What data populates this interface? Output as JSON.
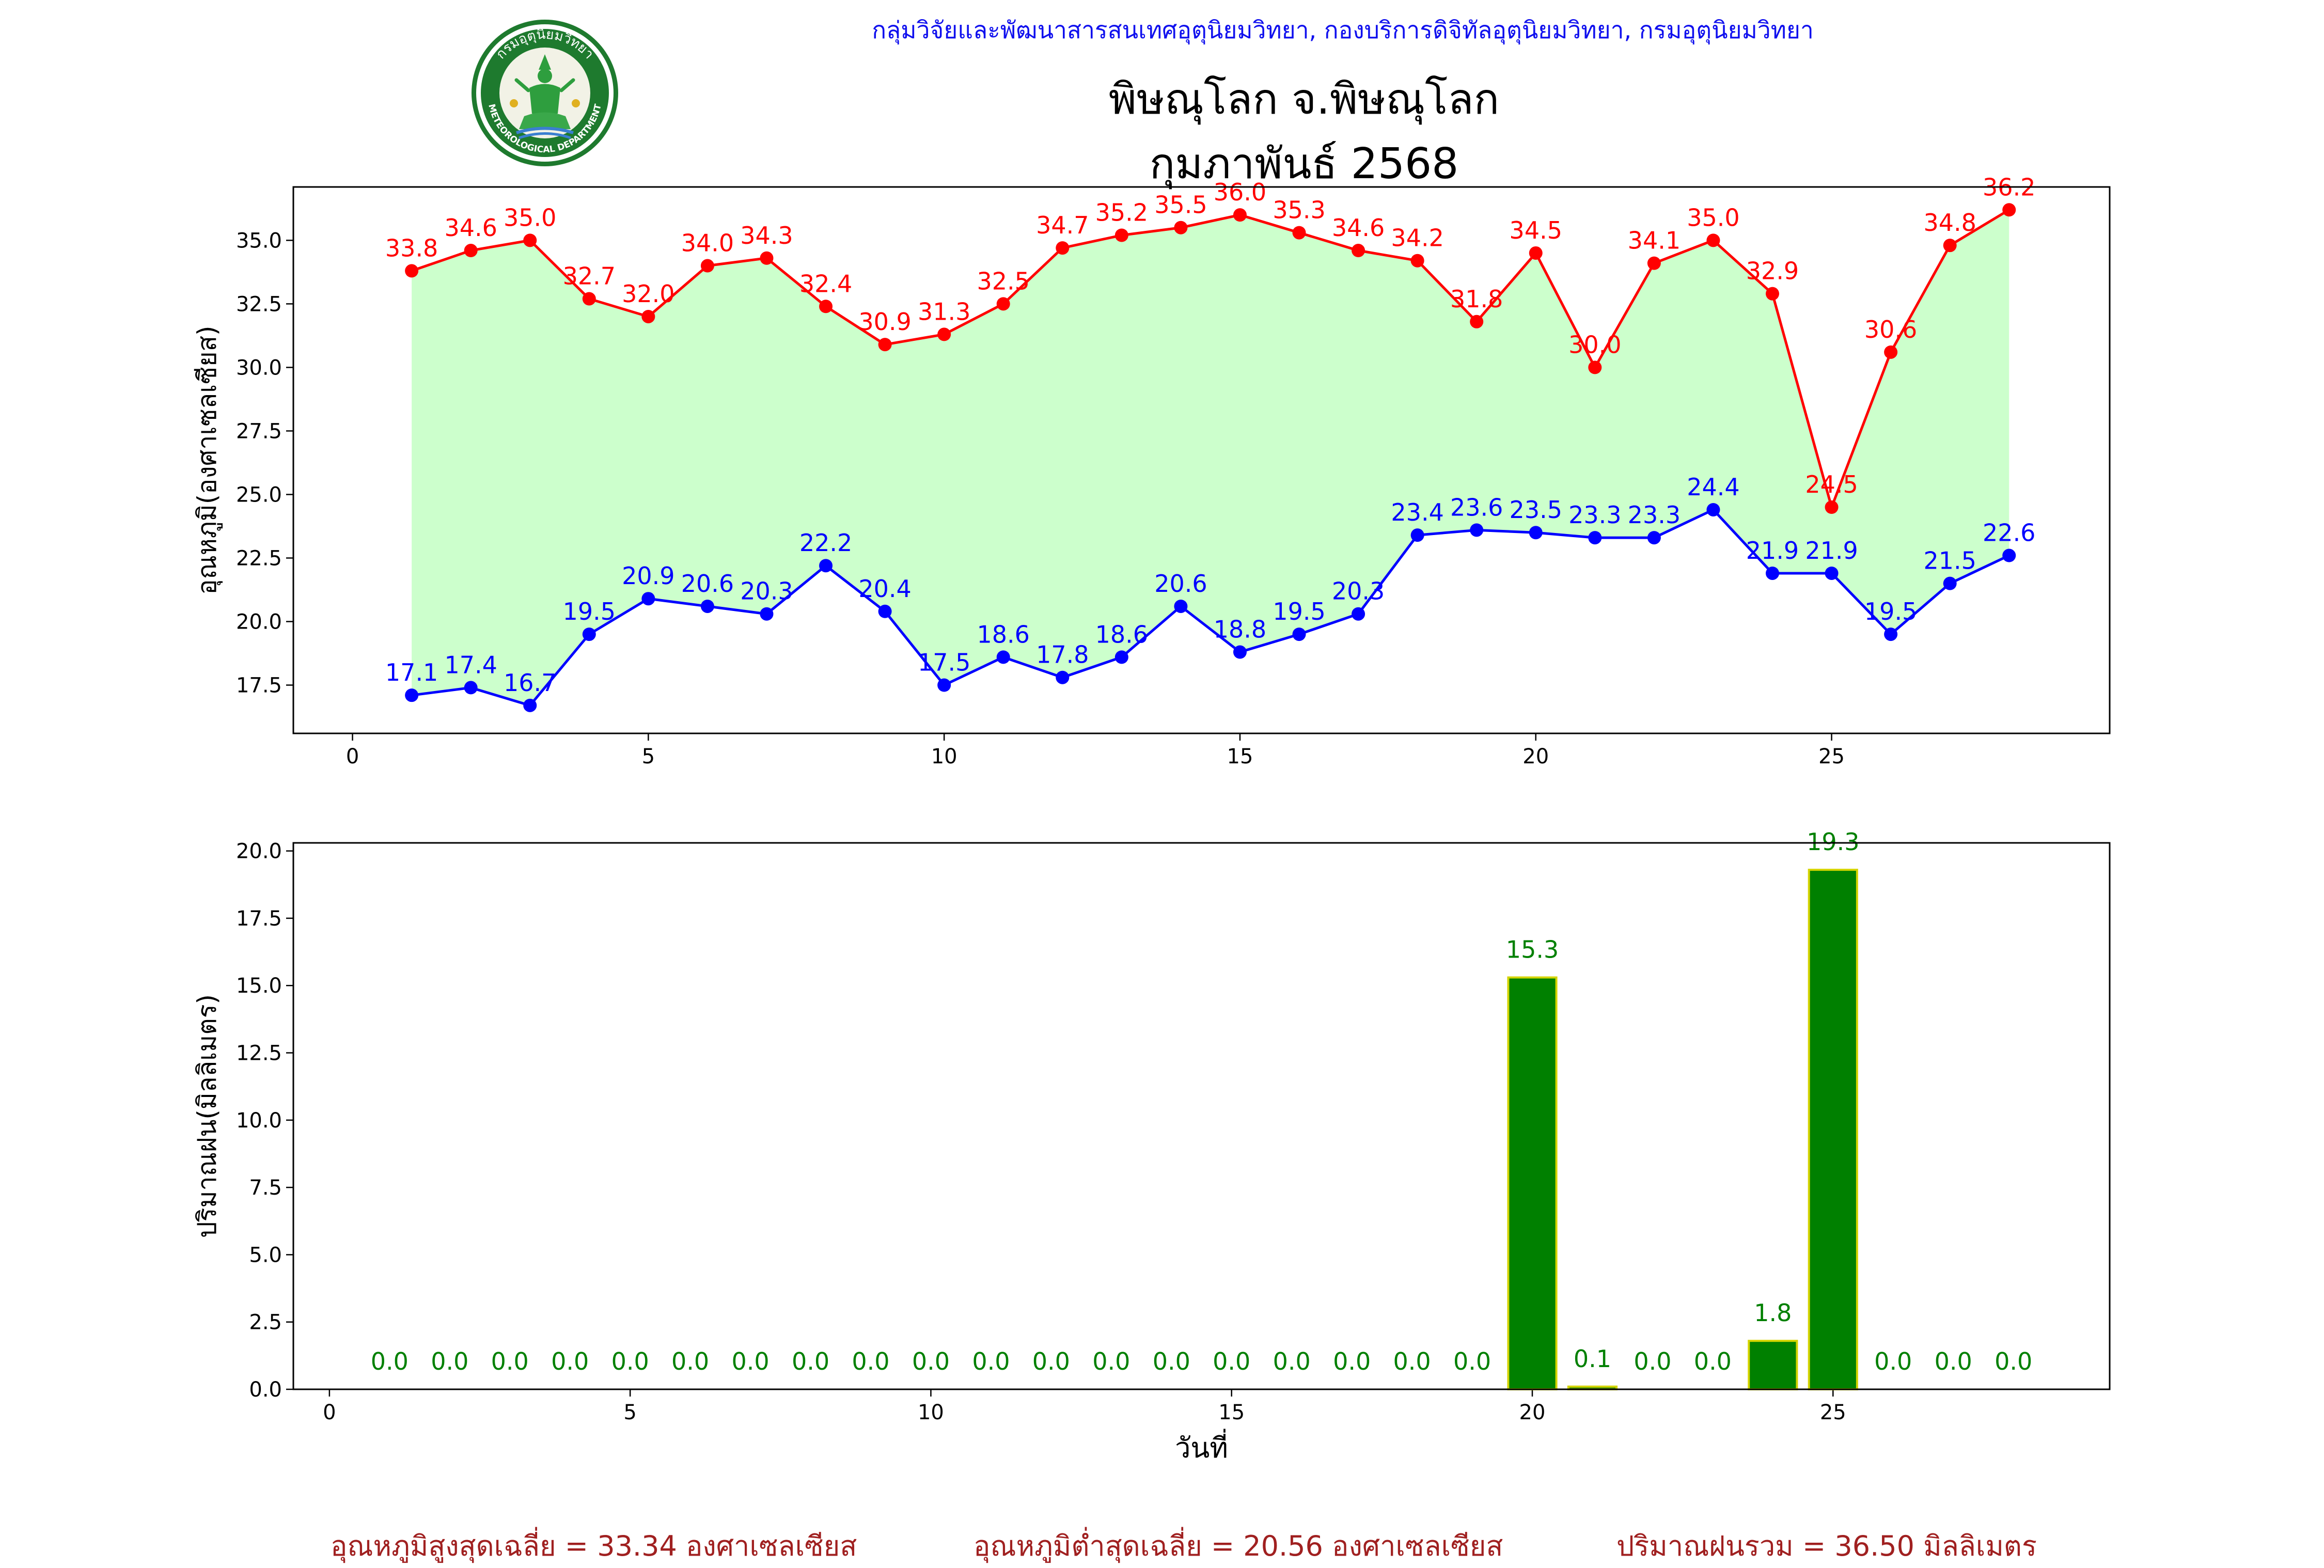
{
  "header": {
    "org_line": "กลุ่มวิจัยและพัฒนาสารสนเทศอุตุนิยมวิทยา, กองบริการดิจิทัลอุตุนิยมวิทยา, กรมอุตุนิยมวิทยา",
    "title_line1": "พิษณุโลก จ.พิษณุโลก",
    "title_line2": "กุมภาพันธ์ 2568",
    "logo_text_top": "กรมอุตุนิยมวิทยา",
    "logo_text_bottom": "METEOROLOGICAL DEPARTMENT"
  },
  "footer": {
    "avg_max": "อุณหภูมิสูงสุดเฉลี่ย = 33.34 องศาเซลเซียส",
    "avg_min": "อุณหภูมิต่ำสุดเฉลี่ย = 20.56 องศาเซลเซียส",
    "rain_total": "ปริมาณฝนรวม = 36.50 มิลลิเมตร"
  },
  "colors": {
    "max_line": "#ff0000",
    "min_line": "#0000ff",
    "fill": "#ccffcc",
    "bar": "#008000",
    "bar_edge": "#d4d400",
    "bar_label": "#008000"
  },
  "chart_data": [
    {
      "type": "line",
      "ylabel": "อุณหภูมิ(องศาเซลเซียส)",
      "xlabel": "",
      "xlim": [
        -1,
        29.7
      ],
      "ylim": [
        15.6,
        37.1
      ],
      "xticks": [
        0,
        5,
        10,
        15,
        20,
        25
      ],
      "yticks": [
        17.5,
        20.0,
        22.5,
        25.0,
        27.5,
        30.0,
        32.5,
        35.0
      ],
      "x": [
        1,
        2,
        3,
        4,
        5,
        6,
        7,
        8,
        9,
        10,
        11,
        12,
        13,
        14,
        15,
        16,
        17,
        18,
        19,
        20,
        21,
        22,
        23,
        24,
        25,
        26,
        27,
        28
      ],
      "series": [
        {
          "key": "max",
          "values": [
            33.8,
            34.6,
            35.0,
            32.7,
            32.0,
            34.0,
            34.3,
            32.4,
            30.9,
            31.3,
            32.5,
            34.7,
            35.2,
            35.5,
            36.0,
            35.3,
            34.6,
            34.2,
            31.8,
            34.5,
            30.0,
            34.1,
            35.0,
            32.9,
            24.5,
            30.6,
            34.8,
            36.2
          ]
        },
        {
          "key": "min",
          "values": [
            17.1,
            17.4,
            16.7,
            19.5,
            20.9,
            20.6,
            20.3,
            22.2,
            20.4,
            17.5,
            18.6,
            17.8,
            18.6,
            20.6,
            18.8,
            19.5,
            20.3,
            23.4,
            23.6,
            23.5,
            23.3,
            23.3,
            24.4,
            21.9,
            21.9,
            19.5,
            21.5,
            22.6
          ]
        }
      ]
    },
    {
      "type": "bar",
      "ylabel": "ปริมาณฝน(มิลลิเมตร)",
      "xlabel": "วันที่",
      "xlim": [
        -0.6,
        29.6
      ],
      "ylim": [
        0,
        20.3
      ],
      "xticks": [
        0,
        5,
        10,
        15,
        20,
        25
      ],
      "yticks": [
        0.0,
        2.5,
        5.0,
        7.5,
        10.0,
        12.5,
        15.0,
        17.5,
        20.0
      ],
      "x": [
        1,
        2,
        3,
        4,
        5,
        6,
        7,
        8,
        9,
        10,
        11,
        12,
        13,
        14,
        15,
        16,
        17,
        18,
        19,
        20,
        21,
        22,
        23,
        24,
        25,
        26,
        27,
        28
      ],
      "values": [
        0.0,
        0.0,
        0.0,
        0.0,
        0.0,
        0.0,
        0.0,
        0.0,
        0.0,
        0.0,
        0.0,
        0.0,
        0.0,
        0.0,
        0.0,
        0.0,
        0.0,
        0.0,
        0.0,
        15.3,
        0.1,
        0.0,
        0.0,
        1.8,
        19.3,
        0.0,
        0.0,
        0.0
      ]
    }
  ]
}
